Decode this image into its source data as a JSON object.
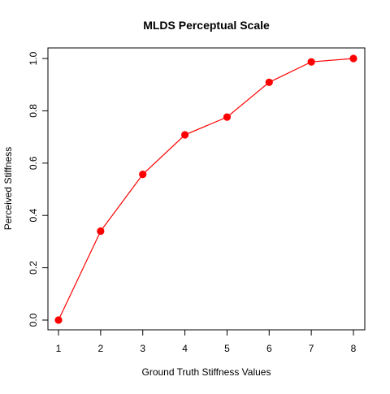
{
  "chart_data": {
    "type": "line",
    "title": "MLDS Perceptual Scale",
    "xlabel": "Ground Truth Stiffness Values",
    "ylabel": "Perceived Stiffness",
    "x": [
      1,
      2,
      3,
      4,
      5,
      6,
      7,
      8
    ],
    "series": [
      {
        "values": [
          0.0,
          0.34,
          0.557,
          0.708,
          0.776,
          0.909,
          0.987,
          1.0
        ],
        "color": "#ff0000",
        "marker": "filled-circle",
        "line": "solid"
      }
    ],
    "xlim": [
      1,
      8
    ],
    "ylim": [
      0,
      1
    ],
    "xticks": [
      1,
      2,
      3,
      4,
      5,
      6,
      7,
      8
    ],
    "xtick_labels": [
      "1",
      "2",
      "3",
      "4",
      "5",
      "6",
      "7",
      "8"
    ],
    "yticks": [
      0,
      0.2,
      0.4,
      0.6,
      0.8,
      1.0
    ],
    "ytick_labels": [
      "0.0",
      "0.2",
      "0.4",
      "0.6",
      "0.8",
      "1.0"
    ],
    "grid": false,
    "legend": "none",
    "box": true
  }
}
